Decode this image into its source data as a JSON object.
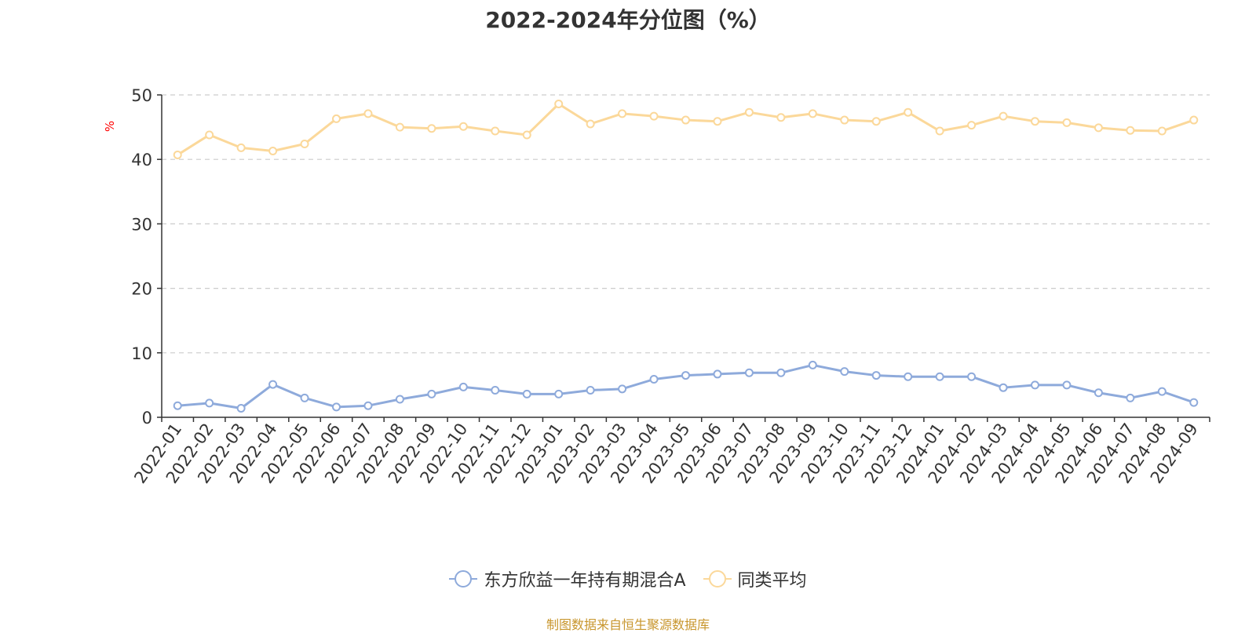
{
  "chart_data": {
    "type": "line",
    "title": "2022-2024年分位图（%）",
    "ylabel": "%",
    "xlabel": "",
    "ylim": [
      0,
      50
    ],
    "yticks": [
      0,
      10,
      20,
      30,
      40,
      50
    ],
    "grid": "horizontal dashed",
    "legend_position": "bottom-center",
    "categories": [
      "2022-01",
      "2022-02",
      "2022-03",
      "2022-04",
      "2022-05",
      "2022-06",
      "2022-07",
      "2022-08",
      "2022-09",
      "2022-10",
      "2022-11",
      "2022-12",
      "2023-01",
      "2023-02",
      "2023-03",
      "2023-04",
      "2023-05",
      "2023-06",
      "2023-07",
      "2023-08",
      "2023-09",
      "2023-10",
      "2023-11",
      "2023-12",
      "2024-01",
      "2024-02",
      "2024-03",
      "2024-04",
      "2024-05",
      "2024-06",
      "2024-07",
      "2024-08",
      "2024-09"
    ],
    "series": [
      {
        "name": "东方欣益一年持有期混合A",
        "color": "#8eaadb",
        "values": [
          1.8,
          2.2,
          1.4,
          5.1,
          3.0,
          1.6,
          1.8,
          2.8,
          3.6,
          4.7,
          4.2,
          3.6,
          3.6,
          4.2,
          4.4,
          5.9,
          6.5,
          6.7,
          6.9,
          6.9,
          8.1,
          7.1,
          6.5,
          6.3,
          6.3,
          6.3,
          4.6,
          5.0,
          5.0,
          3.8,
          3.0,
          4.0,
          2.3
        ]
      },
      {
        "name": "同类平均",
        "color": "#fbd89a",
        "values": [
          40.7,
          43.8,
          41.8,
          41.3,
          42.4,
          46.3,
          47.1,
          45.0,
          44.8,
          45.1,
          44.4,
          43.8,
          48.6,
          45.5,
          47.1,
          46.7,
          46.1,
          45.9,
          47.3,
          46.5,
          47.1,
          46.1,
          45.9,
          47.3,
          44.4,
          45.3,
          46.7,
          45.9,
          45.7,
          44.9,
          44.5,
          44.4,
          46.1
        ]
      }
    ]
  },
  "source_note": "制图数据来自恒生聚源数据库"
}
